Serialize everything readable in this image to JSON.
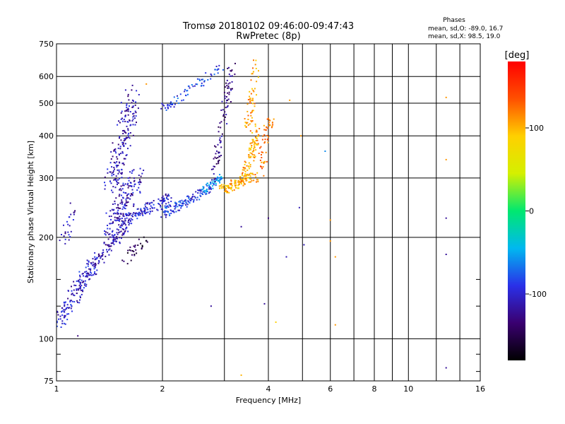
{
  "chart_data": {
    "type": "scatter",
    "title": "Tromsø 20180102 09:46:00-09:47:43",
    "subtitle": "RwPretec (8p)",
    "xlabel": "Frequency [MHz]",
    "ylabel": "Stationary phase Virtual Height [km]",
    "x_scale": "log",
    "y_scale": "log",
    "xlim": [
      1,
      16
    ],
    "ylim": [
      75,
      750
    ],
    "x_ticks": [
      1,
      2,
      4,
      6,
      8,
      10,
      16
    ],
    "x_tick_labels": [
      "1",
      "2",
      "4",
      "6",
      "8",
      "10",
      "16"
    ],
    "x_minor_ticks": [
      3,
      5,
      7,
      9,
      12,
      14
    ],
    "y_ticks": [
      75,
      100,
      200,
      300,
      400,
      500,
      600,
      750
    ],
    "y_tick_labels": [
      "75",
      "100",
      "200",
      "300",
      "400",
      "500",
      "600",
      "750"
    ],
    "y_minor_ticks": [
      80,
      90,
      125,
      150
    ],
    "grid": true,
    "stats_header": "Phases",
    "stats_lines": [
      "mean, sd,O: -89.0, 16.7",
      "mean, sd,X:  98.5, 19.0"
    ],
    "colorbar": {
      "label": "[deg]",
      "range": [
        -180,
        180
      ],
      "ticks": [
        100,
        0,
        -100
      ],
      "tick_labels": [
        "100",
        "0",
        "-100"
      ],
      "stops": [
        "#000000",
        "#3a0070",
        "#2a30e8",
        "#00b8f0",
        "#00e870",
        "#d4f000",
        "#ffd000",
        "#ff5000",
        "#ff0000"
      ]
    },
    "series": [
      {
        "mode": "O",
        "color": "#1a3fd8",
        "segments": [
          {
            "f": [
              1.0,
              1.28
            ],
            "h": [
              108,
              170
            ],
            "scatter": 0.07,
            "n": 150,
            "phase": -105
          },
          {
            "f": [
              1.25,
              1.6
            ],
            "h": [
              160,
              220
            ],
            "scatter": 0.06,
            "n": 110,
            "phase": -110
          },
          {
            "f": [
              1.4,
              1.7
            ],
            "h": [
              205,
              300
            ],
            "scatter": 0.1,
            "n": 170,
            "phase": -108
          },
          {
            "f": [
              1.43,
              1.65
            ],
            "h": [
              280,
              530
            ],
            "scatter": 0.1,
            "n": 180,
            "phase": -112
          },
          {
            "f": [
              1.55,
              2.1
            ],
            "h": [
              225,
              260
            ],
            "scatter": 0.05,
            "n": 130,
            "phase": -100
          },
          {
            "f": [
              2.0,
              2.75
            ],
            "h": [
              235,
              280
            ],
            "scatter": 0.04,
            "n": 120,
            "phase": -90
          },
          {
            "f": [
              2.6,
              2.95
            ],
            "h": [
              275,
              300
            ],
            "scatter": 0.03,
            "n": 60,
            "phase": -60
          },
          {
            "f": [
              2.0,
              2.95
            ],
            "h": [
              480,
              640
            ],
            "scatter": 0.04,
            "n": 70,
            "phase": -85
          },
          {
            "f": [
              2.8,
              3.15
            ],
            "h": [
              300,
              640
            ],
            "scatter": 0.05,
            "n": 90,
            "phase": -125
          },
          {
            "f": [
              1.05,
              1.12
            ],
            "h": [
              195,
              245
            ],
            "scatter": 0.06,
            "n": 25,
            "phase": -110
          },
          {
            "f": [
              1.55,
              1.8
            ],
            "h": [
              170,
              200
            ],
            "scatter": 0.05,
            "n": 30,
            "phase": -150
          }
        ]
      },
      {
        "mode": "X",
        "color": "#ffd000",
        "segments": [
          {
            "f": [
              2.95,
              3.6
            ],
            "h": [
              275,
              305
            ],
            "scatter": 0.04,
            "n": 110,
            "phase": 100
          },
          {
            "f": [
              3.4,
              3.75
            ],
            "h": [
              300,
              420
            ],
            "scatter": 0.05,
            "n": 90,
            "phase": 105
          },
          {
            "f": [
              3.5,
              3.7
            ],
            "h": [
              420,
              650
            ],
            "scatter": 0.05,
            "n": 60,
            "phase": 110
          },
          {
            "f": [
              3.75,
              4.05
            ],
            "h": [
              300,
              460
            ],
            "scatter": 0.06,
            "n": 60,
            "phase": 120
          }
        ]
      }
    ],
    "outliers": [
      {
        "f": 1.15,
        "h": 102,
        "phase": -130
      },
      {
        "f": 2.75,
        "h": 125,
        "phase": -120
      },
      {
        "f": 3.35,
        "h": 215,
        "phase": -120
      },
      {
        "f": 3.35,
        "h": 78,
        "phase": 100
      },
      {
        "f": 3.9,
        "h": 127,
        "phase": -120
      },
      {
        "f": 4.0,
        "h": 228,
        "phase": -130
      },
      {
        "f": 4.2,
        "h": 112,
        "phase": 90
      },
      {
        "f": 4.5,
        "h": 175,
        "phase": -110
      },
      {
        "f": 4.6,
        "h": 510,
        "phase": 110
      },
      {
        "f": 4.9,
        "h": 245,
        "phase": -110
      },
      {
        "f": 4.95,
        "h": 400,
        "phase": 110
      },
      {
        "f": 5.05,
        "h": 190,
        "phase": -110
      },
      {
        "f": 5.8,
        "h": 360,
        "phase": -60
      },
      {
        "f": 6.0,
        "h": 195,
        "phase": 110
      },
      {
        "f": 6.0,
        "h": 225,
        "phase": 110
      },
      {
        "f": 6.2,
        "h": 110,
        "phase": 110
      },
      {
        "f": 6.2,
        "h": 175,
        "phase": 110
      },
      {
        "f": 12.8,
        "h": 82,
        "phase": -120
      },
      {
        "f": 12.8,
        "h": 178,
        "phase": -120
      },
      {
        "f": 12.8,
        "h": 228,
        "phase": -120
      },
      {
        "f": 12.8,
        "h": 340,
        "phase": 110
      },
      {
        "f": 12.8,
        "h": 520,
        "phase": 110
      },
      {
        "f": 1.8,
        "h": 570,
        "phase": 110
      }
    ]
  }
}
